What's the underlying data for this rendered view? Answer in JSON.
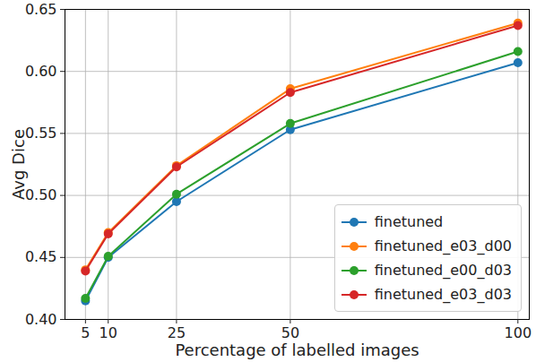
{
  "chart_data": {
    "type": "line",
    "x_label": "Percentage of labelled images",
    "y_label": "Avg Dice",
    "x": [
      5,
      10,
      25,
      50,
      100
    ],
    "series": [
      {
        "name": "finetuned",
        "color": "#1f77b4",
        "values": [
          0.415,
          0.45,
          0.495,
          0.553,
          0.607
        ]
      },
      {
        "name": "finetuned_e03_d00",
        "color": "#ff7f0e",
        "values": [
          0.44,
          0.47,
          0.524,
          0.586,
          0.639
        ]
      },
      {
        "name": "finetuned_e00_d03",
        "color": "#2ca02c",
        "values": [
          0.417,
          0.451,
          0.501,
          0.558,
          0.616
        ]
      },
      {
        "name": "finetuned_e03_d03",
        "color": "#d62728",
        "values": [
          0.439,
          0.469,
          0.523,
          0.583,
          0.637
        ]
      }
    ],
    "xlim": [
      0.5,
      102.5
    ],
    "xticks": [
      5,
      10,
      25,
      50,
      100
    ],
    "ylim": [
      0.4,
      0.65
    ],
    "yticks": [
      {
        "value": 0.4,
        "label": "0.40"
      },
      0.45,
      {
        "value": 0.5,
        "label": "0.50"
      },
      0.55,
      {
        "value": 0.6,
        "label": "0.60"
      },
      0.65
    ],
    "grid": true,
    "legend": "lower right",
    "marker": "circle",
    "line_style": "solid"
  }
}
